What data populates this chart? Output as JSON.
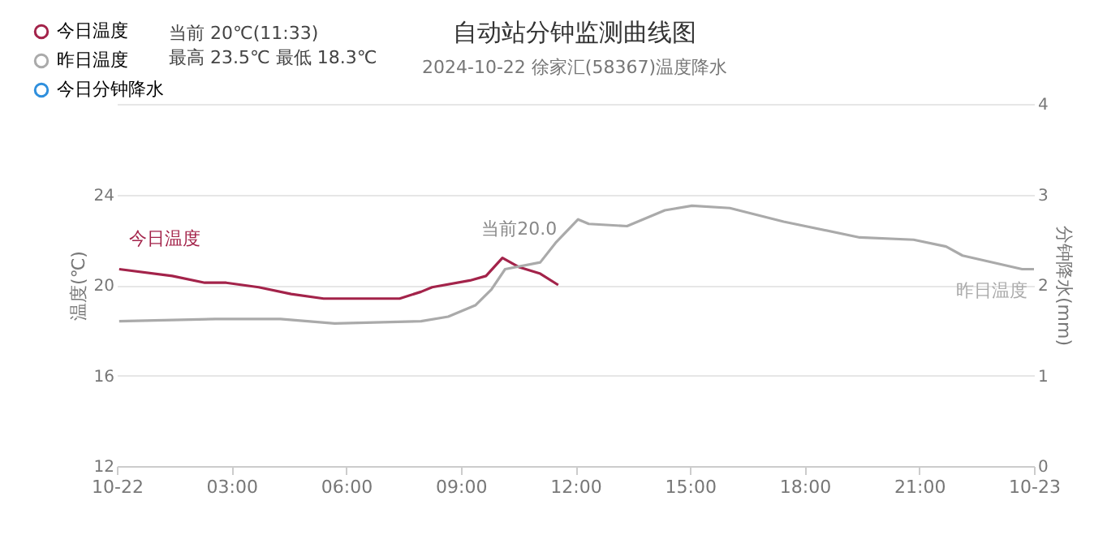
{
  "chart_data": {
    "type": "line",
    "title": "自动站分钟监测曲线图",
    "subtitle": "2024-10-22 徐家汇(58367)温度降水",
    "ylabel": "温度(℃)",
    "y2label": "分钟降水(mm)",
    "xlim": [
      0,
      24
    ],
    "xticks": [
      {
        "value": 0,
        "label": "10-22"
      },
      {
        "value": 3,
        "label": "03:00"
      },
      {
        "value": 6,
        "label": "06:00"
      },
      {
        "value": 9,
        "label": "09:00"
      },
      {
        "value": 12,
        "label": "12:00"
      },
      {
        "value": 15,
        "label": "15:00"
      },
      {
        "value": 18,
        "label": "18:00"
      },
      {
        "value": 21,
        "label": "21:00"
      },
      {
        "value": 24,
        "label": "10-23"
      }
    ],
    "ylim": [
      12,
      28
    ],
    "yticks": [
      12,
      16,
      20,
      24,
      {
        "value": 28,
        "label": null
      }
    ],
    "y2lim": [
      0,
      4
    ],
    "y2ticks": [
      0,
      1,
      2,
      3,
      4
    ],
    "grid": "y",
    "legend": "top left",
    "marker": "none",
    "line_style": "solid",
    "annotations": [
      "当前 20℃(11:33)",
      "最高 23.5℃ 最低 18.3℃",
      {
        "text": "当前20.0",
        "x": 11.55,
        "y": 20.0
      }
    ],
    "series": [
      {
        "name": "今日温度",
        "color": "#a3234a",
        "x": [
          0.06,
          1.45,
          2.3,
          2.86,
          3.71,
          4.56,
          5.41,
          7.4,
          7.96,
          8.25,
          9.24,
          9.66,
          10.09,
          10.51,
          11.08,
          11.55
        ],
        "values": [
          20.7,
          20.4,
          20.1,
          20.1,
          19.9,
          19.6,
          19.4,
          19.4,
          19.7,
          19.9,
          20.2,
          20.4,
          21.2,
          20.8,
          20.5,
          20.0
        ]
      },
      {
        "name": "昨日温度",
        "color": "#aaaaaa",
        "x": [
          0.06,
          2.58,
          4.28,
          5.7,
          7.96,
          8.67,
          9.38,
          9.8,
          10.16,
          11.08,
          11.5,
          12.07,
          12.35,
          13.35,
          14.34,
          15.05,
          16.04,
          17.45,
          19.44,
          20.85,
          21.7,
          22.13,
          23.69,
          24.0
        ],
        "values": [
          18.4,
          18.5,
          18.5,
          18.3,
          18.4,
          18.6,
          19.1,
          19.8,
          20.7,
          21.0,
          21.9,
          22.9,
          22.7,
          22.6,
          23.3,
          23.5,
          23.4,
          22.8,
          22.1,
          22.0,
          21.7,
          21.3,
          20.7,
          20.7
        ]
      },
      {
        "name": "今日分钟降水",
        "color": "#2f8fdd",
        "axis": "y2"
      }
    ]
  }
}
